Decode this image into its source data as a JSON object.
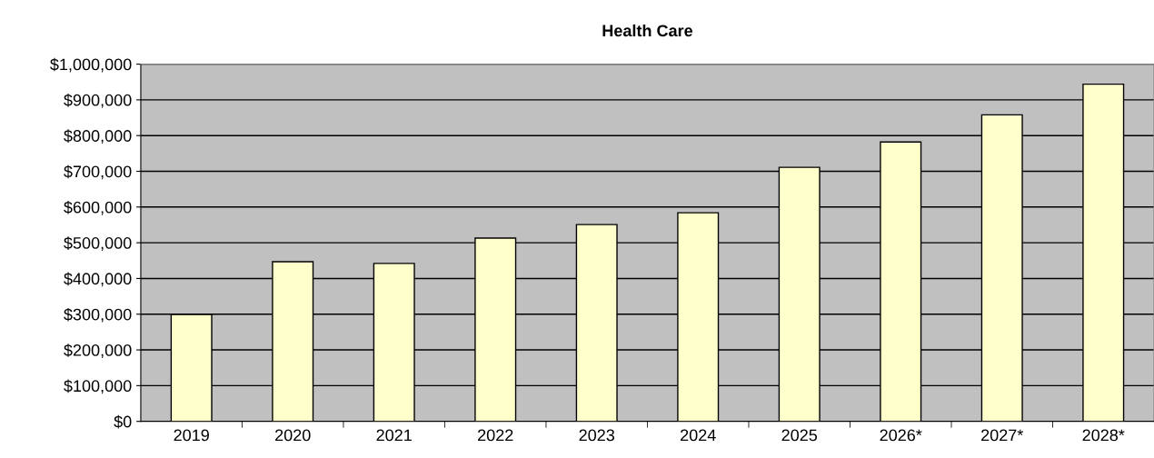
{
  "chart_data": {
    "type": "bar",
    "title": "Health Care",
    "categories": [
      "2019",
      "2020",
      "2021",
      "2022",
      "2023",
      "2024",
      "2025",
      "2026*",
      "2027*",
      "2028*"
    ],
    "values": [
      299000,
      447000,
      442000,
      513000,
      551000,
      584000,
      711000,
      782000,
      858000,
      944000
    ],
    "color": "#ffffcc",
    "ylim": [
      0,
      1000000
    ],
    "yticks": [
      {
        "value": 0,
        "label": "$0"
      },
      {
        "value": 100000,
        "label": "$100,000"
      },
      {
        "value": 200000,
        "label": "$200,000"
      },
      {
        "value": 300000,
        "label": "$300,000"
      },
      {
        "value": 400000,
        "label": "$400,000"
      },
      {
        "value": 500000,
        "label": "$500,000"
      },
      {
        "value": 600000,
        "label": "$600,000"
      },
      {
        "value": 700000,
        "label": "$700,000"
      },
      {
        "value": 800000,
        "label": "$800,000"
      },
      {
        "value": 900000,
        "label": "$900,000"
      },
      {
        "value": 1000000,
        "label": "$1,000,000"
      }
    ],
    "grid": "y",
    "legend": false
  }
}
